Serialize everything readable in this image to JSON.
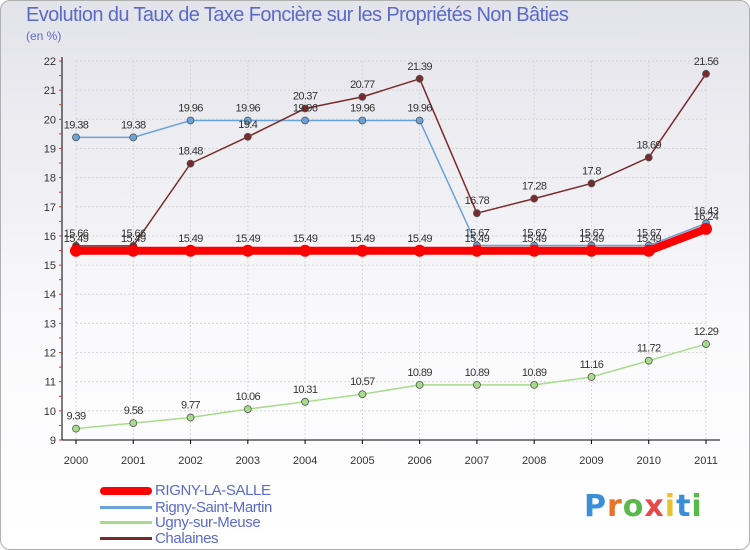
{
  "chart_data": {
    "type": "line",
    "title": "Evolution du Taux de Taxe Foncière sur les Propriétés Non Bâties",
    "ylabel": "(en %)",
    "xlabel": "",
    "categories": [
      "2000",
      "2001",
      "2002",
      "2003",
      "2004",
      "2005",
      "2006",
      "2007",
      "2008",
      "2009",
      "2010",
      "2011"
    ],
    "ylim": [
      9,
      22
    ],
    "yticks": [
      "9",
      "10",
      "11",
      "12",
      "13",
      "14",
      "15",
      "16",
      "17",
      "18",
      "19",
      "20",
      "21",
      "22"
    ],
    "series": [
      {
        "name": "RIGNY-LA-SALLE",
        "color": "#ff0000",
        "values": [
          15.49,
          15.49,
          15.49,
          15.49,
          15.49,
          15.49,
          15.49,
          15.49,
          15.49,
          15.49,
          15.49,
          16.24
        ],
        "labels": [
          "15.49",
          "15.49",
          "15.49",
          "15.49",
          "15.49",
          "15.49",
          "15.49",
          "15.49",
          "15.49",
          "15.49",
          "15.49",
          "16.24"
        ]
      },
      {
        "name": "Rigny-Saint-Martin",
        "color": "#6aa3d8",
        "values": [
          19.38,
          19.38,
          19.96,
          19.96,
          19.96,
          19.96,
          19.96,
          15.67,
          15.67,
          15.67,
          15.67,
          16.43
        ],
        "labels": [
          "19.38",
          "19.38",
          "19.96",
          "19.96",
          "19.96",
          "19.96",
          "19.96",
          "15.67",
          "15.67",
          "15.67",
          "15.67",
          "16.43"
        ]
      },
      {
        "name": "Ugny-sur-Meuse",
        "color": "#a8dc8c",
        "values": [
          9.39,
          9.58,
          9.77,
          10.06,
          10.31,
          10.57,
          10.89,
          10.89,
          10.89,
          11.16,
          11.72,
          12.29
        ],
        "labels": [
          "9.39",
          "9.58",
          "9.77",
          "10.06",
          "10.31",
          "10.57",
          "10.89",
          "10.89",
          "10.89",
          "11.16",
          "11.72",
          "12.29"
        ]
      },
      {
        "name": "Chalaines",
        "color": "#7a2a2a",
        "values": [
          15.66,
          15.66,
          18.48,
          19.4,
          20.37,
          20.77,
          21.39,
          16.78,
          17.28,
          17.8,
          18.69,
          21.56
        ],
        "labels": [
          "15.66",
          "15.66",
          "18.48",
          "19.4",
          "20.37",
          "20.77",
          "21.39",
          "16.78",
          "17.28",
          "17.8",
          "18.69",
          "21.56"
        ]
      }
    ]
  },
  "logo": {
    "letters": [
      "P",
      "r",
      "o",
      "x",
      "i",
      "t",
      "i"
    ],
    "colors": [
      "#3a8fd8",
      "#e8742a",
      "#5bb84a",
      "#e84a4a",
      "#e8c22a",
      "#3a8fd8",
      "#5bb84a"
    ]
  }
}
